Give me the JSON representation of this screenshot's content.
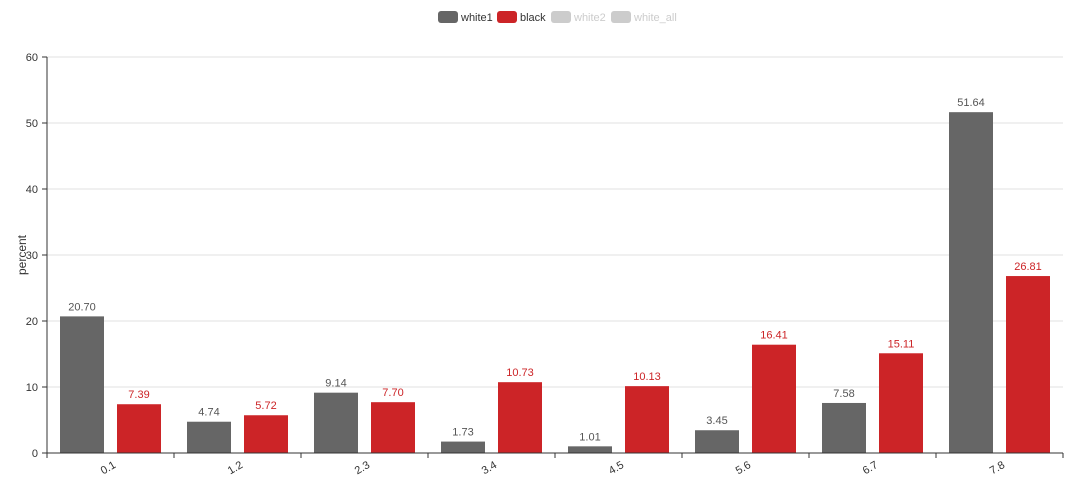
{
  "chart_data": {
    "type": "bar",
    "ylabel": "percent",
    "ylim": [
      0,
      60
    ],
    "yticks": [
      0,
      10,
      20,
      30,
      40,
      50,
      60
    ],
    "categories": [
      "0.1",
      "1.2",
      "2.3",
      "3.4",
      "4.5",
      "5.6",
      "6.7",
      "7.8"
    ],
    "legend_position": "top-center",
    "grid": true,
    "legend": [
      {
        "name": "white1",
        "color": "#666666",
        "active": true
      },
      {
        "name": "black",
        "color": "#cc2427",
        "active": true
      },
      {
        "name": "white2",
        "color": "#cccccc",
        "active": false
      },
      {
        "name": "white_all",
        "color": "#cccccc",
        "active": false
      }
    ],
    "series": [
      {
        "name": "white1",
        "color": "#666666",
        "values": [
          20.7,
          4.74,
          9.14,
          1.73,
          1.01,
          3.45,
          7.58,
          51.64
        ],
        "labels": [
          "20.70",
          "4.74",
          "9.14",
          "1.73",
          "1.01",
          "3.45",
          "7.58",
          "51.64"
        ]
      },
      {
        "name": "black",
        "color": "#cc2427",
        "values": [
          7.39,
          5.72,
          7.7,
          10.73,
          10.13,
          16.41,
          15.11,
          26.81
        ],
        "labels": [
          "7.39",
          "5.72",
          "7.70",
          "10.73",
          "10.13",
          "16.41",
          "15.11",
          "26.81"
        ]
      }
    ]
  }
}
